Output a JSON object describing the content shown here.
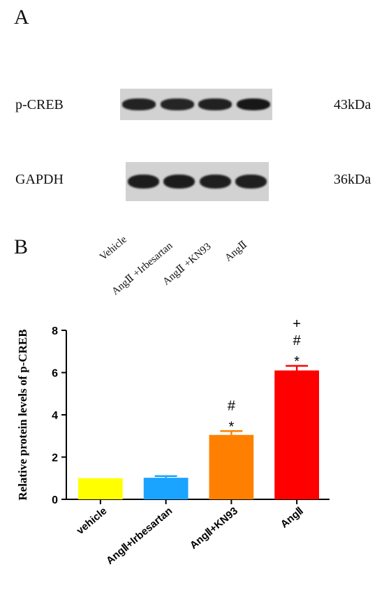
{
  "panel_a": {
    "letter": "A",
    "rows": [
      {
        "protein": "p-CREB",
        "size": "43kDa",
        "band_intensity": [
          0.82,
          0.8,
          0.84,
          0.95
        ]
      },
      {
        "protein": "GAPDH",
        "size": "36kDa",
        "band_intensity": [
          0.88,
          0.9,
          0.87,
          0.86
        ]
      }
    ],
    "lane_labels": [
      "Vehicle",
      "AngⅡ +Irbesartan",
      "AngⅡ +KN93",
      "AngⅡ"
    ],
    "colors": {
      "blot_background": "#d2d2d2",
      "band": "#141414"
    }
  },
  "panel_b": {
    "letter": "B"
  },
  "chart_data": {
    "type": "bar",
    "categories": [
      "vehicle",
      "AngⅡ+Irbesartan",
      "AngⅡ+KN93",
      "AngⅡ"
    ],
    "values": [
      1.0,
      1.02,
      3.05,
      6.1
    ],
    "errors": [
      0.0,
      0.08,
      0.18,
      0.22
    ],
    "colors": [
      "#ffff00",
      "#1aa3ff",
      "#ff8000",
      "#ff0000"
    ],
    "significance": [
      [],
      [],
      [
        "#",
        "*"
      ],
      [
        "+",
        "#",
        "*"
      ]
    ],
    "xlabel": "",
    "ylabel": "Relative protein levels of p-CREB",
    "ylim": [
      0,
      8
    ],
    "yticks": [
      0,
      2,
      4,
      6,
      8
    ],
    "grid": false,
    "legend": "none"
  }
}
